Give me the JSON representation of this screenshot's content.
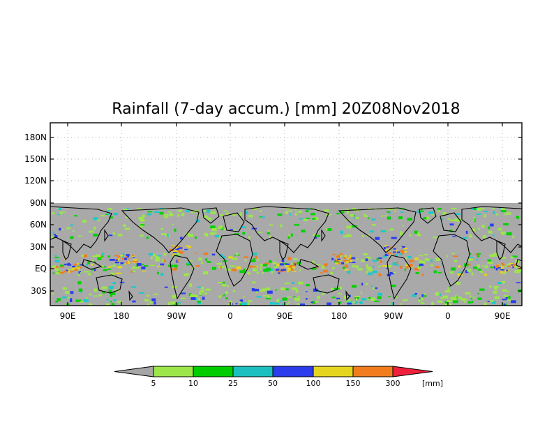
{
  "title": "Rainfall (7-day accum.) [mm] 20Z08Nov2018",
  "map": {
    "y_labels": [
      "180N",
      "150N",
      "120N",
      "90N",
      "60N",
      "30N",
      "EQ",
      "30S"
    ],
    "x_labels": [
      "90E",
      "180",
      "90W",
      "0",
      "90E",
      "180",
      "90W",
      "0",
      "90E"
    ],
    "background_color": "#a9a9a9",
    "ocean_rain_colors": [
      "#9ce64a",
      "#00d100",
      "#1cc9c9",
      "#2a3cf0",
      "#e5d51f",
      "#f07c1e"
    ]
  },
  "colorbar": {
    "labels": [
      "5",
      "10",
      "25",
      "50",
      "100",
      "150",
      "300"
    ],
    "units": "[mm]",
    "colors": [
      "#a6a6a6",
      "#9ce64a",
      "#00cc00",
      "#1cbfbf",
      "#2a3ceb",
      "#e5d51f",
      "#f07c1e",
      "#f0203c"
    ]
  }
}
